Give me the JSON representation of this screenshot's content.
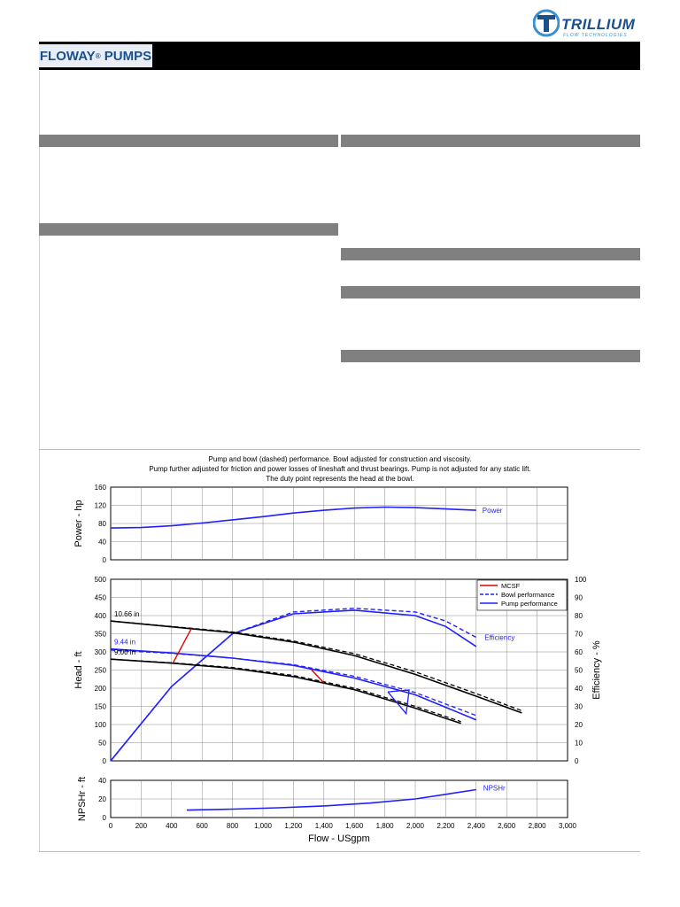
{
  "brand": {
    "name": "FLOWAY",
    "reg": "®",
    "suffix": "PUMPS"
  },
  "logo": {
    "name": "TRILLIUM",
    "tagline": "FLOW TECHNOLOGIES"
  },
  "note": {
    "line1": "Pump and bowl (dashed) performance. Bowl adjusted for construction and viscosity.",
    "line2": "Pump further adjusted for friction and power losses of lineshaft and thrust bearings. Pump is not adjusted for any static lift.",
    "line3": "The duty point represents the head at the bowl."
  },
  "colors": {
    "pump": "#1f1fff",
    "mcsf": "#e00000",
    "diameter": "#000000",
    "grid": "#888888",
    "section": "#808080"
  },
  "chart_data": [
    {
      "type": "line",
      "name": "power",
      "ylabel": "Power - hp",
      "xlim": [
        0,
        3000
      ],
      "ylim": [
        0,
        160
      ],
      "yticks": [
        0,
        40,
        80,
        120,
        160
      ],
      "ytick_labels": [
        "0",
        "40",
        "80",
        "120",
        "160"
      ],
      "series": [
        {
          "name": "Power",
          "x": [
            0,
            200,
            400,
            600,
            800,
            1000,
            1200,
            1400,
            1600,
            1800,
            2000,
            2200,
            2400
          ],
          "values": [
            70,
            71,
            75,
            81,
            88,
            95,
            103,
            109,
            114,
            116,
            115,
            112,
            109
          ]
        }
      ]
    },
    {
      "type": "line",
      "name": "head-efficiency",
      "ylabel": "Head - ft",
      "y2label": "Efficiency - %",
      "xlim": [
        0,
        3000
      ],
      "ylim": [
        0,
        500
      ],
      "y2lim": [
        0,
        100
      ],
      "yticks": [
        0,
        50,
        100,
        150,
        200,
        250,
        300,
        350,
        400,
        450,
        500
      ],
      "ytick_labels": [
        "0",
        "50",
        "100",
        "150",
        "200",
        "250",
        "300",
        "350",
        "400",
        "450",
        "500"
      ],
      "y2ticks": [
        0,
        10,
        20,
        30,
        40,
        50,
        60,
        70,
        80,
        90,
        100
      ],
      "y2tick_labels": [
        "0",
        "10",
        "20",
        "30",
        "40",
        "50",
        "60",
        "70",
        "80",
        "90",
        "100"
      ],
      "legend": [
        "MCSF",
        "Bowl performance",
        "Pump performance"
      ],
      "legend_position": "top-right",
      "diameters": [
        {
          "label": "10.66 in",
          "bowl": {
            "x": [
              0,
              400,
              800,
              1200,
              1600,
              2000,
              2400,
              2700
            ],
            "y": [
              385,
              370,
              355,
              330,
              295,
              245,
              185,
              138
            ]
          },
          "pump": {
            "x": [
              0,
              400,
              800,
              1200,
              1600,
              2000,
              2400,
              2700
            ],
            "y": [
              385,
              369,
              353,
              327,
              290,
              238,
              178,
              132
            ]
          }
        },
        {
          "label": "9.44 in",
          "bowl": {
            "x": [
              0,
              400,
              800,
              1200,
              1600,
              2000,
              2400
            ],
            "y": [
              305,
              296,
              283,
              265,
              233,
              188,
              125
            ]
          },
          "pump": {
            "x": [
              0,
              400,
              800,
              1200,
              1600,
              2000,
              2400
            ],
            "y": [
              308,
              297,
              283,
              263,
              228,
              182,
              113
            ]
          }
        },
        {
          "label": "9.00 in",
          "bowl": {
            "x": [
              0,
              400,
              800,
              1200,
              1600,
              2000,
              2300
            ],
            "y": [
              280,
              270,
              257,
              235,
              200,
              150,
              108
            ]
          },
          "pump": {
            "x": [
              0,
              400,
              800,
              1200,
              1600,
              2000,
              2300
            ],
            "y": [
              280,
              269,
              255,
              232,
              196,
              145,
              103
            ]
          }
        }
      ],
      "efficiency": {
        "label": "Efficiency",
        "bowl": {
          "x": [
            0,
            400,
            800,
            1200,
            1600,
            2000,
            2200,
            2400
          ],
          "y": [
            0,
            41,
            70,
            82,
            84,
            82,
            77,
            68
          ]
        },
        "pump": {
          "x": [
            0,
            400,
            800,
            1200,
            1600,
            2000,
            2200,
            2400
          ],
          "y": [
            0,
            41,
            70,
            81,
            83,
            80,
            74,
            63
          ]
        }
      },
      "mcsf_lines": [
        {
          "x": [
            410,
            530
          ],
          "y": [
            270,
            365
          ]
        },
        {
          "x": [
            1320,
            1400
          ],
          "y": [
            250,
            215
          ]
        }
      ],
      "duty_point": {
        "x": [
          1820,
          1960,
          1940,
          1820
        ],
        "y": [
          190,
          195,
          130,
          190
        ]
      }
    },
    {
      "type": "line",
      "name": "npshr",
      "ylabel": "NPSHr - ft",
      "xlabel": "Flow - USgpm",
      "xlim": [
        0,
        3000
      ],
      "ylim": [
        0,
        40
      ],
      "yticks": [
        0,
        20,
        40
      ],
      "ytick_labels": [
        "0",
        "20",
        "40"
      ],
      "xticks": [
        0,
        200,
        400,
        600,
        800,
        1000,
        1200,
        1400,
        1600,
        1800,
        2000,
        2200,
        2400,
        2600,
        2800,
        3000
      ],
      "xtick_labels": [
        "0",
        "200",
        "400",
        "600",
        "800",
        "1,000",
        "1,200",
        "1,400",
        "1,600",
        "1,800",
        "2,000",
        "2,200",
        "2,400",
        "2,600",
        "2,800",
        "3,000"
      ],
      "series": [
        {
          "name": "NPSHr",
          "x": [
            500,
            800,
            1100,
            1400,
            1700,
            2000,
            2200,
            2400
          ],
          "values": [
            8,
            9,
            10.5,
            12.5,
            15.5,
            20,
            25,
            30
          ]
        }
      ]
    }
  ]
}
